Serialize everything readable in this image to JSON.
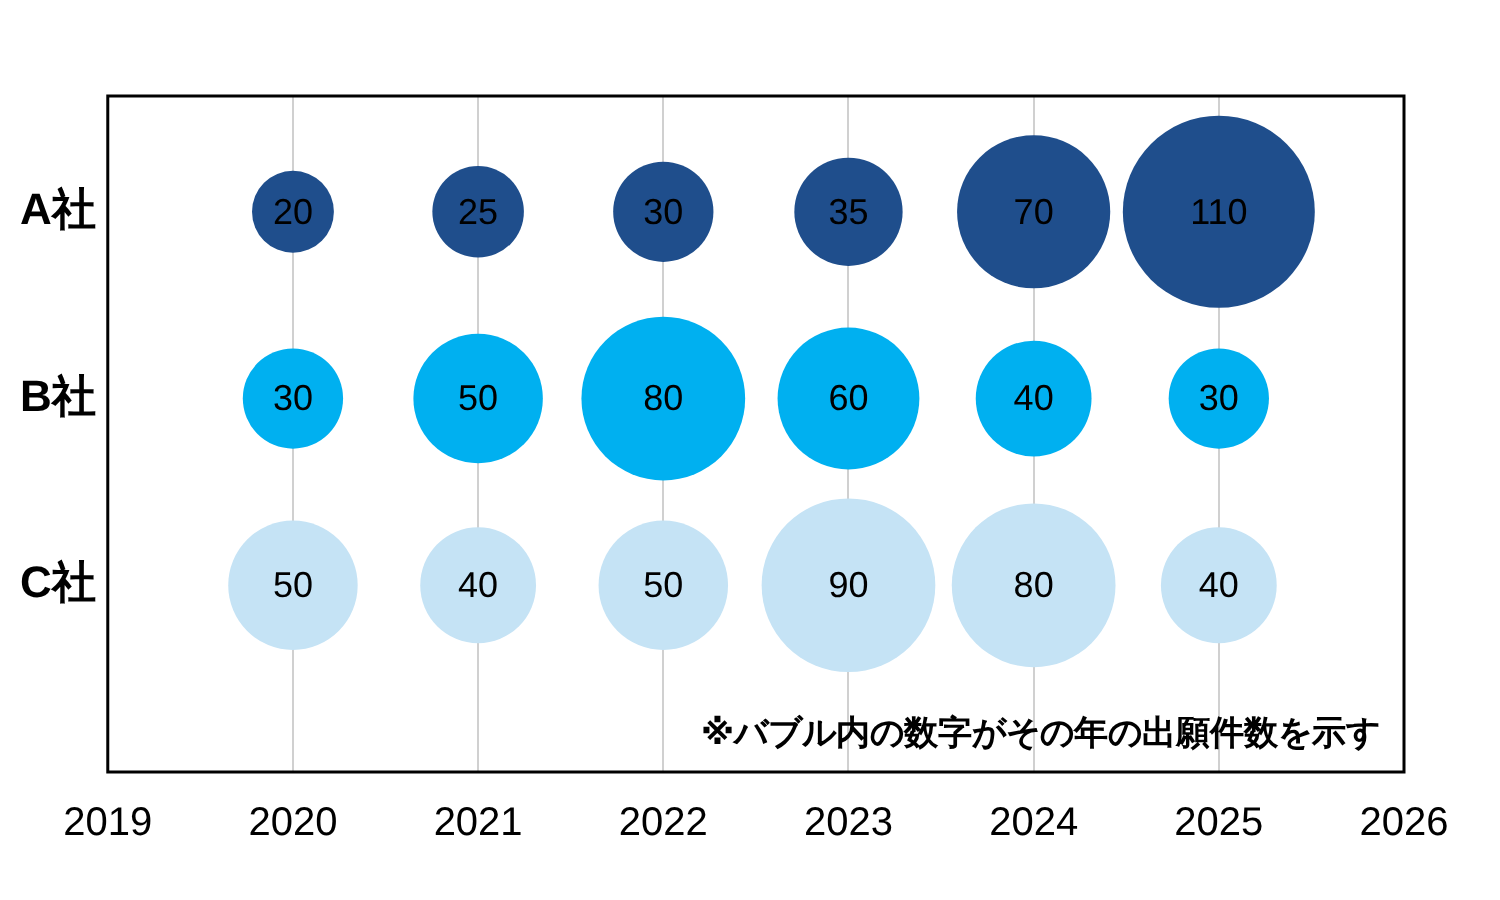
{
  "chart_data": {
    "type": "bubble",
    "orientation": "horizontal",
    "categories": [
      "A社",
      "B社",
      "C社"
    ],
    "series": [
      {
        "colors": [
          "#1f4e8c",
          "#00b0f0",
          "#c5e3f5"
        ],
        "values": [
          2020,
          2020,
          2020
        ],
        "sizes": [
          20,
          30,
          50
        ],
        "value_labels": [
          "20",
          "30",
          "50"
        ]
      },
      {
        "colors": [
          "#1f4e8c",
          "#00b0f0",
          "#c5e3f5"
        ],
        "values": [
          2021,
          2021,
          2021
        ],
        "sizes": [
          25,
          50,
          40
        ],
        "value_labels": [
          "25",
          "50",
          "40"
        ]
      },
      {
        "colors": [
          "#1f4e8c",
          "#00b0f0",
          "#c5e3f5"
        ],
        "values": [
          2022,
          2022,
          2022
        ],
        "sizes": [
          30,
          80,
          50
        ],
        "value_labels": [
          "30",
          "80",
          "50"
        ]
      },
      {
        "colors": [
          "#1f4e8c",
          "#00b0f0",
          "#c5e3f5"
        ],
        "values": [
          2023,
          2023,
          2023
        ],
        "sizes": [
          35,
          60,
          90
        ],
        "value_labels": [
          "35",
          "60",
          "90"
        ]
      },
      {
        "colors": [
          "#1f4e8c",
          "#00b0f0",
          "#c5e3f5"
        ],
        "values": [
          2024,
          2024,
          2024
        ],
        "sizes": [
          70,
          40,
          80
        ],
        "value_labels": [
          "70",
          "40",
          "80"
        ]
      },
      {
        "colors": [
          "#1f4e8c",
          "#00b0f0",
          "#c5e3f5"
        ],
        "values": [
          2025,
          2025,
          2025
        ],
        "sizes": [
          110,
          30,
          40
        ],
        "value_labels": [
          "110",
          "30",
          "40"
        ]
      }
    ],
    "xlim": [
      2019,
      2026
    ],
    "xticks": [
      2019,
      2020,
      2021,
      2022,
      2023,
      2024,
      2025,
      2026
    ],
    "grid": "x",
    "legend": false,
    "annotations": [
      "※バブル内の数字がその年の出願件数を示す"
    ]
  }
}
